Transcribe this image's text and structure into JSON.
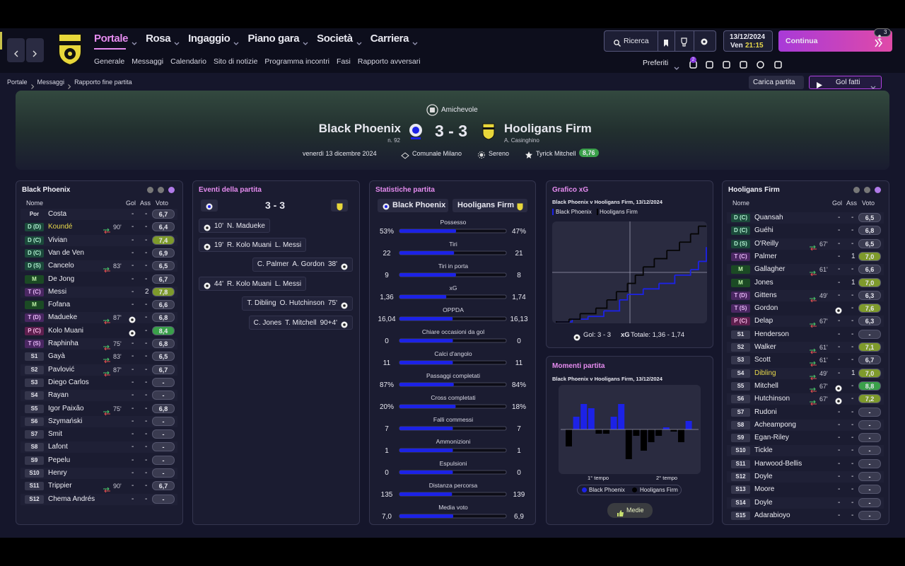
{
  "nav": {
    "menus": [
      "Portale",
      "Rosa",
      "Ingaggio",
      "Piano gara",
      "Società",
      "Carriera"
    ],
    "submenu": [
      "Generale",
      "Messaggi",
      "Calendario",
      "Sito di notizie",
      "Programma incontri",
      "Fasi",
      "Rapporto avversari"
    ],
    "search": "Ricerca",
    "date": "13/12/2024",
    "day": "Ven",
    "time": "21:15",
    "continue": "Continua",
    "continue_badge": "3",
    "favorites": "Preferiti",
    "notifications": "2"
  },
  "breadcrumb": [
    "Portale",
    "Messaggi",
    "Rapporto fine partita"
  ],
  "actions": {
    "load": "Carica partita",
    "goals": "Gol fatti"
  },
  "match": {
    "competition": "Amichevole",
    "home": "Black Phoenix",
    "home_sub": "n. 92",
    "score": "3 - 3",
    "away": "Hooligans Firm",
    "away_sub": "A. Casinghino",
    "date": "venerdì 13 dicembre 2024",
    "venue": "Comunale Milano",
    "weather": "Sereno",
    "motm": "Tyrick Mitchell",
    "motm_rating": "8,76"
  },
  "home_lineup": {
    "title": "Black Phoenix",
    "columns": [
      "Nome",
      "Gol",
      "Ass",
      "Voto"
    ],
    "players": [
      {
        "pos": "Por",
        "name": "Costa",
        "gol": "-",
        "ass": "-",
        "voto": "6,7"
      },
      {
        "pos": "D (D)",
        "name": "Koundé",
        "sub": "90'",
        "gol": "-",
        "ass": "-",
        "voto": "6,4",
        "highlight": true
      },
      {
        "pos": "D (C)",
        "name": "Vivian",
        "gol": "-",
        "ass": "-",
        "voto": "7,4"
      },
      {
        "pos": "D (C)",
        "name": "Van de Ven",
        "gol": "-",
        "ass": "-",
        "voto": "6,9"
      },
      {
        "pos": "D (S)",
        "name": "Cancelo",
        "sub": "83'",
        "gol": "-",
        "ass": "-",
        "voto": "6,5"
      },
      {
        "pos": "M",
        "name": "De Jong",
        "gol": "-",
        "ass": "-",
        "voto": "6,7"
      },
      {
        "pos": "T (C)",
        "name": "Messi",
        "gol": "-",
        "ass": "2",
        "voto": "7,8"
      },
      {
        "pos": "M",
        "name": "Fofana",
        "gol": "-",
        "ass": "-",
        "voto": "6,6"
      },
      {
        "pos": "T (D)",
        "name": "Madueke",
        "sub": "87'",
        "goal": true,
        "ass": "-",
        "voto": "6,8"
      },
      {
        "pos": "P (C)",
        "name": "Kolo Muani",
        "goal": true,
        "ass": "-",
        "voto": "8,4"
      },
      {
        "pos": "T (S)",
        "name": "Raphinha",
        "sub": "75'",
        "gol": "-",
        "ass": "-",
        "voto": "6,8"
      },
      {
        "pos": "S1",
        "name": "Gayà",
        "sub": "83'",
        "gol": "-",
        "ass": "-",
        "voto": "6,5"
      },
      {
        "pos": "S2",
        "name": "Pavlović",
        "sub": "87'",
        "gol": "-",
        "ass": "-",
        "voto": "6,7"
      },
      {
        "pos": "S3",
        "name": "Diego Carlos",
        "gol": "-",
        "ass": "-",
        "voto": "-"
      },
      {
        "pos": "S4",
        "name": "Rayan",
        "gol": "-",
        "ass": "-",
        "voto": "-"
      },
      {
        "pos": "S5",
        "name": "Igor Paixão",
        "sub": "75'",
        "gol": "-",
        "ass": "-",
        "voto": "6,8"
      },
      {
        "pos": "S6",
        "name": "Szymański",
        "gol": "-",
        "ass": "-",
        "voto": "-"
      },
      {
        "pos": "S7",
        "name": "Smit",
        "gol": "-",
        "ass": "-",
        "voto": "-"
      },
      {
        "pos": "S8",
        "name": "Lafont",
        "gol": "-",
        "ass": "-",
        "voto": "-"
      },
      {
        "pos": "S9",
        "name": "Pepelu",
        "gol": "-",
        "ass": "-",
        "voto": "-"
      },
      {
        "pos": "S10",
        "name": "Henry",
        "gol": "-",
        "ass": "-",
        "voto": "-"
      },
      {
        "pos": "S11",
        "name": "Trippier",
        "sub": "90'",
        "gol": "-",
        "ass": "-",
        "voto": "6,7"
      },
      {
        "pos": "S12",
        "name": "Chema Andrés",
        "gol": "-",
        "ass": "-",
        "voto": "-"
      }
    ]
  },
  "away_lineup": {
    "title": "Hooligans Firm",
    "columns": [
      "Nome",
      "Gol",
      "Ass",
      "Voto"
    ],
    "players": [
      {
        "pos": "D (C)",
        "name": "Quansah",
        "gol": "-",
        "ass": "-",
        "voto": "6,5"
      },
      {
        "pos": "D (C)",
        "name": "Guéhi",
        "gol": "-",
        "ass": "-",
        "voto": "6,8"
      },
      {
        "pos": "D (S)",
        "name": "O'Reilly",
        "sub": "67'",
        "gol": "-",
        "ass": "-",
        "voto": "6,5"
      },
      {
        "pos": "T (C)",
        "name": "Palmer",
        "gol": "-",
        "ass": "1",
        "voto": "7,0"
      },
      {
        "pos": "M",
        "name": "Gallagher",
        "sub": "61'",
        "gol": "-",
        "ass": "-",
        "voto": "6,6"
      },
      {
        "pos": "M",
        "name": "Jones",
        "gol": "-",
        "ass": "1",
        "voto": "7,0"
      },
      {
        "pos": "T (D)",
        "name": "Gittens",
        "sub": "49'",
        "gol": "-",
        "ass": "-",
        "voto": "6,3"
      },
      {
        "pos": "T (S)",
        "name": "Gordon",
        "goal": true,
        "ass": "-",
        "voto": "7,6"
      },
      {
        "pos": "P (C)",
        "name": "Delap",
        "sub": "67'",
        "gol": "-",
        "ass": "-",
        "voto": "6,3"
      },
      {
        "pos": "S1",
        "name": "Henderson",
        "gol": "-",
        "ass": "-",
        "voto": "-"
      },
      {
        "pos": "S2",
        "name": "Walker",
        "sub": "61'",
        "gol": "-",
        "ass": "-",
        "voto": "7,1"
      },
      {
        "pos": "S3",
        "name": "Scott",
        "sub": "61'",
        "gol": "-",
        "ass": "-",
        "voto": "6,7"
      },
      {
        "pos": "S4",
        "name": "Dibling",
        "sub": "49'",
        "gol": "-",
        "ass": "1",
        "voto": "7,0",
        "highlight": true
      },
      {
        "pos": "S5",
        "name": "Mitchell",
        "sub": "67'",
        "goal": true,
        "ass": "-",
        "voto": "8,8"
      },
      {
        "pos": "S6",
        "name": "Hutchinson",
        "sub": "67'",
        "goal": true,
        "ass": "-",
        "voto": "7,2"
      },
      {
        "pos": "S7",
        "name": "Rudoni",
        "gol": "-",
        "ass": "-",
        "voto": "-"
      },
      {
        "pos": "S8",
        "name": "Acheampong",
        "gol": "-",
        "ass": "-",
        "voto": "-"
      },
      {
        "pos": "S9",
        "name": "Egan-Riley",
        "gol": "-",
        "ass": "-",
        "voto": "-"
      },
      {
        "pos": "S10",
        "name": "Tickle",
        "gol": "-",
        "ass": "-",
        "voto": "-"
      },
      {
        "pos": "S11",
        "name": "Harwood-Bellis",
        "gol": "-",
        "ass": "-",
        "voto": "-"
      },
      {
        "pos": "S12",
        "name": "Doyle",
        "gol": "-",
        "ass": "-",
        "voto": "-"
      },
      {
        "pos": "S13",
        "name": "Moore",
        "gol": "-",
        "ass": "-",
        "voto": "-"
      },
      {
        "pos": "S14",
        "name": "Doyle",
        "gol": "-",
        "ass": "-",
        "voto": "-"
      },
      {
        "pos": "S15",
        "name": "Adarabioyo",
        "gol": "-",
        "ass": "-",
        "voto": "-"
      }
    ]
  },
  "events": {
    "title": "Eventi della partita",
    "score": "3 - 3",
    "items": [
      {
        "side": "home",
        "minute": "10'",
        "scorer": "N. Madueke"
      },
      {
        "side": "home",
        "minute": "19'",
        "scorer": "R. Kolo Muani",
        "assist": "L. Messi"
      },
      {
        "side": "away",
        "minute": "38'",
        "scorer": "A. Gordon",
        "assist": "C. Palmer"
      },
      {
        "side": "home",
        "minute": "44'",
        "scorer": "R. Kolo Muani",
        "assist": "L. Messi"
      },
      {
        "side": "away",
        "minute": "75'",
        "scorer": "O. Hutchinson",
        "assist": "T. Dibling"
      },
      {
        "side": "away",
        "minute": "90+4'",
        "scorer": "T. Mitchell",
        "assist": "C. Jones"
      }
    ]
  },
  "stats": {
    "title": "Statistiche partita",
    "home": "Black Phoenix",
    "away": "Hooligans Firm",
    "home_color": "#1c22e6",
    "rows": [
      {
        "label": "Possesso",
        "home": {
          "value": 53,
          "label": "53%"
        },
        "away": {
          "value": 47,
          "label": "47%"
        }
      },
      {
        "label": "Tiri",
        "home": 22,
        "away": 21
      },
      {
        "label": "Tiri in porta",
        "home": 9,
        "away": 8
      },
      {
        "label": "xG",
        "home": {
          "value": 1.36,
          "label": "1,36"
        },
        "away": {
          "value": 1.74,
          "label": "1,74"
        }
      },
      {
        "label": "OPPDA",
        "home": {
          "value": 16.04,
          "label": "16,04"
        },
        "away": {
          "value": 16.13,
          "label": "16,13"
        }
      },
      {
        "label": "Chiare occasioni da gol",
        "home": 0,
        "away": 0
      },
      {
        "label": "Calci d'angolo",
        "home": 11,
        "away": 11
      },
      {
        "label": "Passaggi completati",
        "home": {
          "value": 87,
          "label": "87%"
        },
        "away": {
          "value": 84,
          "label": "84%"
        }
      },
      {
        "label": "Cross completati",
        "home": {
          "value": 20,
          "label": "20%"
        },
        "away": {
          "value": 18,
          "label": "18%"
        }
      },
      {
        "label": "Falli commessi",
        "home": 7,
        "away": 7
      },
      {
        "label": "Ammonizioni",
        "home": 1,
        "away": 1
      },
      {
        "label": "Espulsioni",
        "home": 0,
        "away": 0
      },
      {
        "label": "Distanza percorsa",
        "home": 135,
        "away": 139
      },
      {
        "label": "Media voto",
        "home": {
          "value": 7.0,
          "label": "7,0"
        },
        "away": {
          "value": 6.9,
          "label": "6,9"
        }
      }
    ]
  },
  "chart_data": [
    {
      "type": "line",
      "step": true,
      "title": "Grafico xG",
      "subtitle": "Black Phoenix v Hooligans Firm, 13/12/2024",
      "xlim": [
        0,
        95
      ],
      "ylim": [
        0,
        1.8
      ],
      "series": [
        {
          "name": "Black Phoenix",
          "color": "#1c22e6",
          "x": [
            0,
            10,
            20,
            30,
            40,
            45,
            55,
            65,
            75,
            85,
            90,
            95
          ],
          "values": [
            0,
            0.05,
            0.1,
            0.2,
            0.4,
            0.5,
            0.6,
            0.7,
            0.85,
            0.95,
            1.1,
            1.36
          ]
        },
        {
          "name": "Hooligans Firm",
          "color": "#000000",
          "x": [
            0,
            8,
            15,
            25,
            32,
            38,
            45,
            50,
            55,
            62,
            70,
            78,
            85,
            90,
            95
          ],
          "values": [
            0,
            0.05,
            0.15,
            0.25,
            0.4,
            0.55,
            0.7,
            0.85,
            1.0,
            1.15,
            1.3,
            1.45,
            1.6,
            1.74,
            1.74
          ]
        }
      ],
      "goals_text": "Gol: 3 - 3",
      "xg_label": "xG",
      "xg_text": "Totale: 1,36 - 1,74"
    },
    {
      "type": "bar",
      "title": "Momenti partita",
      "subtitle": "Black Phoenix v Hooligans Firm, 13/12/2024",
      "ylim": [
        -1,
        1
      ],
      "values": [
        -0.4,
        0.3,
        0.6,
        0.5,
        -0.1,
        -0.1,
        0.3,
        0.6,
        -0.7,
        -0.15,
        -0.5,
        -0.3,
        -0.15,
        0.05,
        -0.05,
        -0.3,
        0.2
      ],
      "series": [
        {
          "name": "Black Phoenix",
          "color": "#1c22e6"
        },
        {
          "name": "Hooligans Firm",
          "color": "#000000"
        }
      ],
      "half_labels": [
        "1° tempo",
        "2° tempo"
      ],
      "button": "Medie"
    }
  ]
}
